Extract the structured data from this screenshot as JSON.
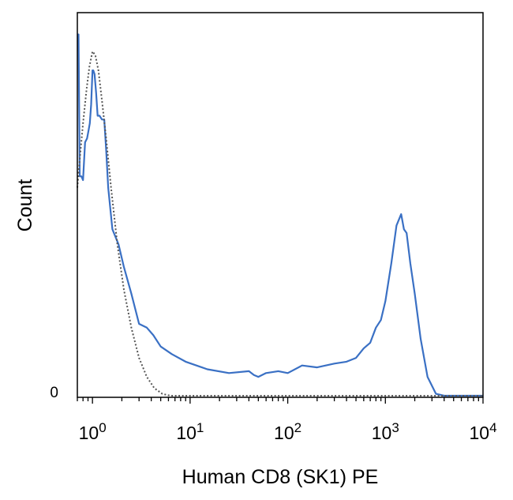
{
  "chart_data": {
    "type": "line",
    "title": "",
    "xlabel": "Human CD8 (SK1) PE",
    "ylabel": "Count",
    "x_scale": "log",
    "xlim": [
      0.7,
      10000
    ],
    "ylim": [
      0,
      1
    ],
    "x_ticks": [
      {
        "value": 1,
        "base": "10",
        "exp": "0"
      },
      {
        "value": 10,
        "base": "10",
        "exp": "1"
      },
      {
        "value": 100,
        "base": "10",
        "exp": "2"
      },
      {
        "value": 1000,
        "base": "10",
        "exp": "3"
      },
      {
        "value": 10000,
        "base": "10",
        "exp": "4"
      }
    ],
    "y_ticks": [
      {
        "value": 0,
        "label": "0"
      }
    ],
    "grid": false,
    "legend": "none",
    "series": [
      {
        "style": "solid",
        "color": "#3a70c4",
        "x": [
          0.7,
          0.72,
          0.74,
          0.77,
          0.8,
          0.84,
          0.88,
          0.91,
          0.94,
          0.97,
          1.0,
          1.02,
          1.05,
          1.09,
          1.13,
          1.18,
          1.25,
          1.32,
          1.38,
          1.45,
          1.6,
          1.85,
          2.1,
          2.5,
          3.0,
          3.6,
          4.2,
          5.0,
          6.5,
          9.0,
          15.0,
          25.0,
          40.0,
          45.0,
          50.0,
          60.0,
          80.0,
          100,
          140,
          200,
          300,
          400,
          500,
          600,
          700,
          800,
          900,
          1000,
          1150,
          1300,
          1450,
          1550,
          1650,
          1800,
          2000,
          2300,
          2700,
          3300,
          4000,
          5000,
          7000,
          10000
        ],
        "y": [
          0.955,
          0.955,
          0.58,
          0.58,
          0.57,
          0.67,
          0.68,
          0.7,
          0.72,
          0.77,
          0.86,
          0.86,
          0.85,
          0.8,
          0.74,
          0.74,
          0.73,
          0.73,
          0.65,
          0.55,
          0.44,
          0.4,
          0.34,
          0.27,
          0.19,
          0.18,
          0.16,
          0.13,
          0.11,
          0.09,
          0.07,
          0.06,
          0.065,
          0.055,
          0.05,
          0.06,
          0.065,
          0.06,
          0.08,
          0.075,
          0.085,
          0.09,
          0.1,
          0.125,
          0.14,
          0.18,
          0.2,
          0.25,
          0.35,
          0.45,
          0.48,
          0.44,
          0.43,
          0.35,
          0.27,
          0.15,
          0.05,
          0.005,
          0.0,
          0.0,
          0.0,
          0.0
        ]
      },
      {
        "style": "dotted",
        "color": "#555555",
        "x": [
          0.7,
          0.75,
          0.8,
          0.87,
          0.93,
          1.0,
          1.07,
          1.15,
          1.25,
          1.38,
          1.55,
          1.8,
          2.1,
          2.5,
          3.0,
          3.6,
          4.3,
          5.2,
          6.3,
          7.5,
          9.0,
          10000
        ],
        "y": [
          0.55,
          0.64,
          0.72,
          0.81,
          0.87,
          0.91,
          0.9,
          0.86,
          0.78,
          0.68,
          0.55,
          0.4,
          0.28,
          0.18,
          0.1,
          0.05,
          0.02,
          0.005,
          0.0,
          0.0,
          0.0,
          0.0
        ]
      }
    ]
  }
}
